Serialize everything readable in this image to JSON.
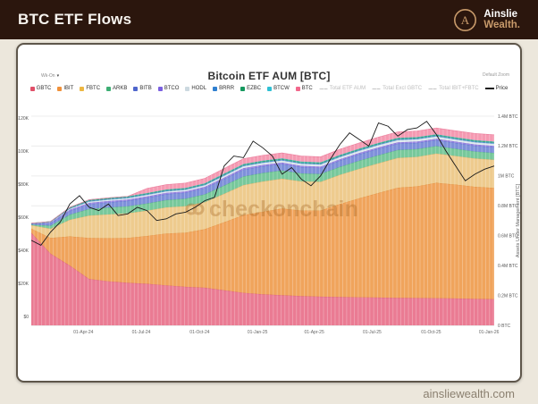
{
  "header": {
    "title": "BTC ETF Flows",
    "brand": {
      "icon_letter": "A",
      "name_top": "Ainslie",
      "name_bottom": "Wealth."
    }
  },
  "card": {
    "controls": {
      "left_dropdown": "Wk-On",
      "right_label": "Default Zoom"
    },
    "title": "Bitcoin ETF AUM [BTC]",
    "watermark": "checkonchain",
    "legend": [
      {
        "label": "GBTC",
        "color": "#e04f68",
        "type": "area"
      },
      {
        "label": "IBIT",
        "color": "#f0913a",
        "type": "area"
      },
      {
        "label": "FBTC",
        "color": "#edb742",
        "type": "area"
      },
      {
        "label": "ARKB",
        "color": "#3dae74",
        "type": "area"
      },
      {
        "label": "BITB",
        "color": "#4f66cc",
        "type": "area"
      },
      {
        "label": "BTCO",
        "color": "#7a5fe0",
        "type": "area"
      },
      {
        "label": "HODL",
        "color": "#ccd9e0",
        "type": "area"
      },
      {
        "label": "BRRR",
        "color": "#2f7fd0",
        "type": "area"
      },
      {
        "label": "EZBC",
        "color": "#15985e",
        "type": "area"
      },
      {
        "label": "BTCW",
        "color": "#2fc0d4",
        "type": "area"
      },
      {
        "label": "BTC",
        "color": "#f2688c",
        "type": "area"
      },
      {
        "label": "Total ETF AUM",
        "color": "#c9c9c9",
        "type": "hidden"
      },
      {
        "label": "Total Excl GBTC",
        "color": "#c9c9c9",
        "type": "hidden"
      },
      {
        "label": "Total IBIT+FBTC",
        "color": "#c9c9c9",
        "type": "hidden"
      },
      {
        "label": "Price",
        "color": "#1a1a1a",
        "type": "line"
      }
    ]
  },
  "footer": {
    "site": "ainsliewealth.com"
  },
  "chart_data": {
    "type": "area",
    "title": "Bitcoin ETF AUM [BTC]",
    "stacked": true,
    "x_unit": "months since 11-Jan-2024",
    "x_range": [
      0,
      24
    ],
    "x_ticks": [
      {
        "m": 2.7,
        "label": "01-Apr-24"
      },
      {
        "m": 5.7,
        "label": "01-Jul-24"
      },
      {
        "m": 8.73,
        "label": "01-Oct-24"
      },
      {
        "m": 11.73,
        "label": "01-Jan-25"
      },
      {
        "m": 14.67,
        "label": "01-Apr-25"
      },
      {
        "m": 17.67,
        "label": "01-Jul-25"
      },
      {
        "m": 20.73,
        "label": "01-Oct-25"
      },
      {
        "m": 23.73,
        "label": "01-Jan-26"
      }
    ],
    "y_right": {
      "label": "Assets Under Management [BTC]",
      "unit": "thousand BTC",
      "range_kbtc": [
        0,
        1400
      ],
      "ticks": [
        {
          "v": 1400,
          "label": "1.4M BTC"
        },
        {
          "v": 1200,
          "label": "1.2M BTC"
        },
        {
          "v": 1000,
          "label": "1M BTC"
        },
        {
          "v": 800,
          "label": "0.8M BTC"
        },
        {
          "v": 600,
          "label": "0.6M BTC"
        },
        {
          "v": 400,
          "label": "0.4M BTC"
        },
        {
          "v": 200,
          "label": "0.2M BTC"
        },
        {
          "v": 0,
          "label": "0 BTC"
        }
      ]
    },
    "y_left": {
      "label": "Price",
      "unit": "thousand USD",
      "range_kusd": [
        0,
        121
      ],
      "ticks": [
        {
          "v": 120,
          "label": "$120K"
        },
        {
          "v": 100,
          "label": "$100K"
        },
        {
          "v": 80,
          "label": "$80K"
        },
        {
          "v": 60,
          "label": "$60K"
        },
        {
          "v": 40,
          "label": "$40K"
        },
        {
          "v": 20,
          "label": "$20K"
        },
        {
          "v": 0,
          "label": "$0"
        }
      ]
    },
    "x_months": [
      0,
      1,
      2,
      3,
      4,
      5,
      6,
      7,
      8,
      9,
      10,
      11,
      12,
      13,
      14,
      15,
      16,
      17,
      18,
      19,
      20,
      21,
      22,
      23,
      24
    ],
    "series": [
      {
        "name": "GBTC",
        "color": "#ea7b93",
        "edge": "#d65d79",
        "values_kbtc": [
          620,
          480,
          400,
          310,
          295,
          285,
          278,
          268,
          258,
          252,
          235,
          218,
          208,
          202,
          196,
          192,
          190,
          188,
          186,
          184,
          183,
          182,
          180,
          177,
          175
        ]
      },
      {
        "name": "IBIT",
        "color": "#f0a45c",
        "edge": "#e28b3a",
        "values_kbtc": [
          28,
          105,
          195,
          275,
          288,
          300,
          320,
          347,
          362,
          392,
          455,
          520,
          552,
          580,
          572,
          576,
          622,
          662,
          700,
          737,
          747,
          772,
          762,
          750,
          745
        ]
      },
      {
        "name": "FBTC",
        "color": "#eecb8e",
        "edge": "#ddb066",
        "values_kbtc": [
          22,
          62,
          112,
          150,
          160,
          165,
          170,
          175,
          178,
          181,
          191,
          201,
          203,
          200,
          196,
          193,
          196,
          198,
          199,
          200,
          198,
          196,
          192,
          190,
          188
        ]
      },
      {
        "name": "ARKB",
        "color": "#77c89b",
        "edge": "#4fae7f",
        "values_kbtc": [
          4,
          20,
          34,
          44,
          46,
          47,
          48,
          49,
          50,
          52,
          55,
          58,
          57,
          55,
          53,
          52,
          53,
          54,
          54,
          53,
          52,
          50,
          48,
          47,
          46
        ]
      },
      {
        "name": "BITB",
        "color": "#7e90da",
        "edge": "#5c72cc",
        "values_kbtc": [
          4,
          15,
          25,
          32,
          34,
          36,
          38,
          39,
          40,
          41,
          43,
          45,
          44,
          43,
          42,
          41,
          42,
          43,
          43,
          42,
          41,
          40,
          39,
          38,
          38
        ]
      },
      {
        "name": "BTCO",
        "color": "#9a86e2",
        "edge": "#8169d6",
        "values_kbtc": [
          2,
          5,
          8,
          9,
          9,
          9,
          9,
          9,
          9,
          9,
          10,
          10,
          10,
          10,
          9,
          9,
          9,
          9,
          9,
          9,
          9,
          9,
          9,
          9,
          9
        ]
      },
      {
        "name": "HODL",
        "color": "#dfe9ee",
        "edge": "#b9cbd6",
        "values_kbtc": [
          1,
          3,
          6,
          8,
          9,
          9,
          10,
          10,
          10,
          11,
          12,
          13,
          13,
          13,
          13,
          13,
          14,
          14,
          15,
          15,
          15,
          15,
          14,
          14,
          14
        ]
      },
      {
        "name": "BRRR",
        "color": "#5f9fdc",
        "edge": "#3f86c8",
        "values_kbtc": [
          1,
          2,
          4,
          5,
          5,
          5,
          5,
          5,
          5,
          5,
          6,
          6,
          6,
          6,
          6,
          6,
          6,
          6,
          6,
          6,
          6,
          6,
          6,
          6,
          6
        ]
      },
      {
        "name": "EZBC",
        "color": "#41b381",
        "edge": "#2c9a6a",
        "values_kbtc": [
          1,
          2,
          4,
          5,
          5,
          5,
          5,
          5,
          5,
          5,
          6,
          6,
          6,
          6,
          6,
          6,
          6,
          6,
          6,
          6,
          6,
          6,
          6,
          6,
          6
        ]
      },
      {
        "name": "BTCW",
        "color": "#66ccd9",
        "edge": "#45b6c6",
        "values_kbtc": [
          0.5,
          1,
          2,
          2.5,
          2.5,
          2.5,
          2.5,
          2.5,
          2.5,
          3,
          3,
          3,
          3,
          3,
          3,
          3,
          3,
          3,
          3,
          3,
          3,
          3,
          3,
          3,
          3
        ]
      },
      {
        "name": "BTC",
        "color": "#f59ab2",
        "edge": "#ec7f9d",
        "values_kbtc": [
          0,
          0,
          0,
          0,
          0,
          0,
          31,
          32,
          33,
          33,
          34,
          35,
          36,
          36,
          37,
          37,
          38,
          38,
          39,
          40,
          41,
          42,
          43,
          44,
          45
        ]
      }
    ],
    "hidden_series": [
      "Total ETF AUM",
      "Total Excl GBTC",
      "Total IBIT+FBTC"
    ],
    "price": {
      "name": "Price",
      "color": "#1a1a1a",
      "x_start": 0,
      "x_step": 0.5,
      "values_kusd": [
        46,
        43,
        51,
        57,
        68,
        73,
        66,
        64,
        68,
        61,
        62,
        66,
        64,
        58,
        59,
        62,
        63,
        66,
        70,
        72,
        91,
        97,
        96,
        106,
        102,
        97,
        86,
        90,
        83,
        79,
        85,
        95,
        104,
        111,
        107,
        103,
        117,
        115,
        109,
        113,
        114,
        118,
        110,
        100,
        91,
        82,
        86,
        89,
        91
      ]
    }
  }
}
